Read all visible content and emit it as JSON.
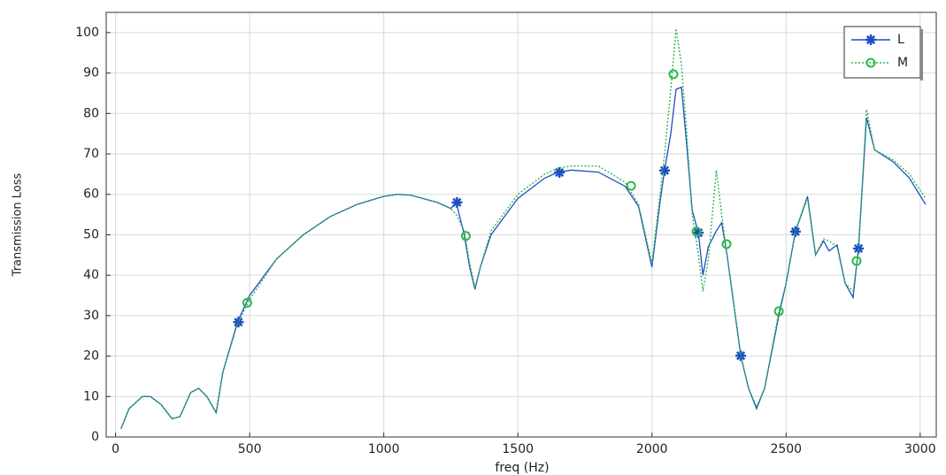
{
  "chart_data": {
    "type": "line",
    "x_label": "freq (Hz)",
    "y_label": "Transmission Loss",
    "x": [
      20,
      50,
      100,
      130,
      170,
      210,
      240,
      280,
      310,
      340,
      375,
      400,
      455,
      500,
      600,
      700,
      800,
      900,
      1000,
      1050,
      1100,
      1200,
      1250,
      1270,
      1300,
      1320,
      1340,
      1360,
      1400,
      1500,
      1600,
      1650,
      1700,
      1800,
      1900,
      1950,
      2000,
      2030,
      2047,
      2070,
      2090,
      2110,
      2130,
      2150,
      2173,
      2190,
      2210,
      2240,
      2260,
      2280,
      2331,
      2360,
      2390,
      2420,
      2473,
      2500,
      2535,
      2580,
      2610,
      2640,
      2660,
      2690,
      2720,
      2750,
      2770,
      2800,
      2830,
      2900,
      2960,
      3020
    ],
    "series": [
      {
        "name": "L",
        "color": "#1d4fc4",
        "marker": "star",
        "dash": "solid",
        "values": [
          2,
          7,
          10,
          10,
          8,
          4.5,
          5,
          11,
          12,
          10,
          6,
          16,
          28.5,
          35,
          44,
          50,
          54.5,
          57.5,
          59.5,
          60,
          59.8,
          58,
          56.5,
          58,
          50,
          42,
          36.5,
          42,
          50,
          59,
          64,
          65.5,
          66,
          65.5,
          62,
          57,
          42,
          58,
          66,
          75,
          86,
          86.5,
          72,
          56,
          50.5,
          40,
          47,
          51,
          53,
          45,
          20.1,
          12,
          7,
          12,
          30,
          38,
          50.8,
          59.5,
          45,
          48.5,
          46,
          47.5,
          38,
          34.5,
          46.6,
          79,
          71,
          68,
          64,
          57.5
        ],
        "markers": {
          "x": [
            458,
            1273,
            1655,
            2047,
            2173,
            2331,
            2535,
            2770
          ],
          "values": [
            28.4,
            58,
            65.4,
            65.9,
            50.5,
            20.1,
            50.8,
            46.6
          ]
        }
      },
      {
        "name": "M",
        "color": "#2db84a",
        "marker": "circle",
        "dash": "dotted",
        "values": [
          2,
          7,
          10,
          10,
          8,
          4.5,
          5,
          11,
          12,
          10,
          6,
          16,
          28,
          34,
          44,
          50,
          54.5,
          57.5,
          59.5,
          60,
          59.8,
          58,
          56.5,
          55,
          51,
          43,
          37,
          42,
          51,
          60,
          65,
          66.5,
          67,
          67,
          63,
          57.5,
          43,
          60,
          70,
          86,
          101,
          92,
          75,
          55,
          45,
          36,
          44,
          66,
          55,
          45,
          20,
          12,
          7.5,
          12,
          31,
          38,
          51,
          59,
          45,
          49,
          48.5,
          47,
          38,
          36,
          46,
          81,
          71,
          68.5,
          65,
          59
        ],
        "markers": {
          "x": [
            491,
            1306,
            1922,
            2080,
            2166,
            2278,
            2473,
            2763
          ],
          "values": [
            33.2,
            49.7,
            62.1,
            89.7,
            50.8,
            47.7,
            31.1,
            43.5
          ]
        }
      }
    ],
    "xlim": [
      -35,
      3060
    ],
    "xticks": [
      0,
      500,
      1000,
      1500,
      2000,
      2500,
      3000
    ],
    "ylim": [
      0,
      105
    ],
    "yticks": [
      0,
      10,
      20,
      30,
      40,
      50,
      60,
      70,
      80,
      90,
      100
    ],
    "grid": true,
    "legend": "upper right"
  }
}
